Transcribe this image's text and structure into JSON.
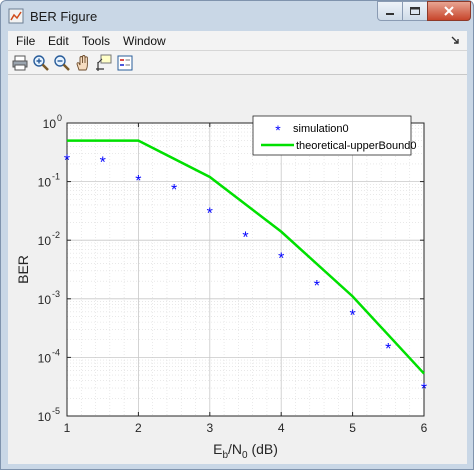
{
  "window": {
    "title": "BER Figure"
  },
  "menu": {
    "items": [
      "File",
      "Edit",
      "Tools",
      "Window"
    ]
  },
  "toolbar": {
    "tools": [
      "print-icon",
      "zoom-in-icon",
      "zoom-out-icon",
      "pan-hand-icon",
      "data-cursor-icon",
      "insert-legend-icon"
    ]
  },
  "axis_labels": {
    "y": "BER",
    "x_main": "E",
    "x_sub1": "b",
    "x_sep": "/N",
    "x_sub2": "0",
    "x_unit": " (dB)"
  },
  "chart_data": {
    "type": "line",
    "x_ticks": [
      "1",
      "2",
      "3",
      "4",
      "5",
      "6"
    ],
    "y_ticks": [
      {
        "base": "10",
        "exp": "0"
      },
      {
        "base": "10",
        "exp": "-1"
      },
      {
        "base": "10",
        "exp": "-2"
      },
      {
        "base": "10",
        "exp": "-3"
      },
      {
        "base": "10",
        "exp": "-4"
      },
      {
        "base": "10",
        "exp": "-5"
      }
    ],
    "xlim": [
      1,
      6
    ],
    "ylim": [
      1e-05,
      1
    ],
    "y_scale": "log",
    "grid": true,
    "legend_position": "top-right",
    "series": [
      {
        "name": "simulation0",
        "style": "markers",
        "marker": "*",
        "color": "#0000ff",
        "x": [
          1,
          1.5,
          2,
          2.5,
          3,
          3.5,
          4,
          4.5,
          5,
          5.5,
          6
        ],
        "y": [
          0.25,
          0.23,
          0.11,
          0.078,
          0.031,
          0.012,
          0.0053,
          0.0018,
          0.00056,
          0.00015,
          3.1e-05
        ]
      },
      {
        "name": "theoretical-upperBound0",
        "style": "line",
        "color": "#00e000",
        "x": [
          1,
          2,
          3,
          4,
          5,
          6
        ],
        "y": [
          0.5,
          0.5,
          0.12,
          0.014,
          0.0011,
          5.3e-05
        ]
      }
    ]
  }
}
